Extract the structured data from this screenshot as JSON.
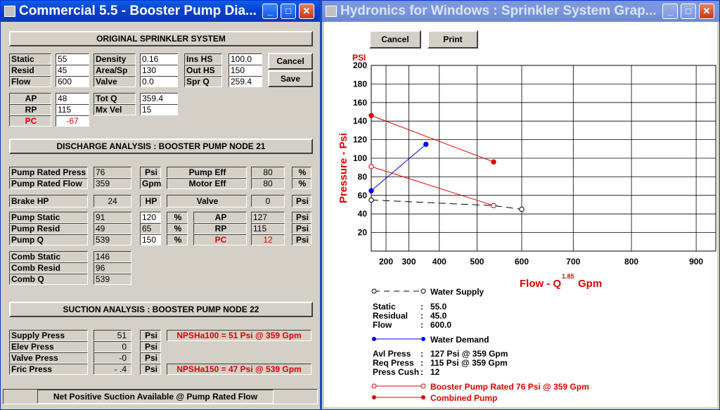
{
  "left_window": {
    "title": "Commercial 5.5 - Booster Pump Dia...",
    "original": {
      "header": "ORIGINAL SPRINKLER SYSTEM",
      "col1": [
        {
          "label": "Static",
          "value": "55"
        },
        {
          "label": "Resid",
          "value": "45"
        },
        {
          "label": "Flow",
          "value": "600"
        }
      ],
      "col2": [
        {
          "label": "Density",
          "value": "0.16"
        },
        {
          "label": "Area/Sp",
          "value": "130"
        },
        {
          "label": "Valve",
          "value": "0.0"
        }
      ],
      "col3": [
        {
          "label": "Ins HS",
          "value": "100.0"
        },
        {
          "label": "Out HS",
          "value": "150"
        },
        {
          "label": "Spr Q",
          "value": "259.4"
        }
      ],
      "ap_label": "AP",
      "ap_value": "48",
      "rp_label": "RP",
      "rp_value": "115",
      "pc_label": "PC",
      "pc_value": "-67",
      "totq_label": "Tot Q",
      "totq_value": "359.4",
      "mxvel_label": "Mx Vel",
      "mxvel_value": "15",
      "cancel_label": "Cancel",
      "save_label": "Save"
    },
    "discharge": {
      "header": "DISCHARGE ANALYSIS : BOOSTER PUMP NODE 21",
      "rated_press_label": "Pump Rated Press",
      "rated_press_value": "76",
      "rated_press_unit": "Psi",
      "rated_flow_label": "Pump Rated Flow",
      "rated_flow_value": "359",
      "rated_flow_unit": "Gpm",
      "pump_eff_label": "Pump Eff",
      "pump_eff_value": "80",
      "pump_eff_unit": "%",
      "motor_eff_label": "Motor Eff",
      "motor_eff_value": "80",
      "motor_eff_unit": "%",
      "brake_label": "Brake HP",
      "brake_value": "24",
      "brake_unit": "HP",
      "valve_label": "Valve",
      "valve_value": "0",
      "valve_unit": "Psi",
      "pump_static_label": "Pump Static",
      "pump_static_value": "91",
      "pump_static_pct": "120",
      "pump_static_pct_unit": "%",
      "pump_resid_label": "Pump Resid",
      "pump_resid_value": "49",
      "pump_resid_pct": "65",
      "pump_resid_pct_unit": "%",
      "pump_q_label": "Pump Q",
      "pump_q_value": "539",
      "pump_q_pct": "150",
      "pump_q_pct_unit": "%",
      "ap_label": "AP",
      "ap_value": "127",
      "ap_unit": "Psi",
      "rp_label": "RP",
      "rp_value": "115",
      "rp_unit": "Psi",
      "pc_label": "PC",
      "pc_value": "12",
      "pc_unit": "Psi",
      "comb_static_label": "Comb Static",
      "comb_static_value": "146",
      "comb_resid_label": "Comb Resid",
      "comb_resid_value": "96",
      "comb_q_label": "Comb Q",
      "comb_q_value": "539"
    },
    "suction": {
      "header": "SUCTION ANALYSIS : BOOSTER PUMP NODE 22",
      "supply_label": "Supply Press",
      "supply_value": "51",
      "supply_unit": "Psi",
      "elev_label": "Elev    Press",
      "elev_value": "0",
      "elev_unit": "Psi",
      "valve_label": "Valve  Press",
      "valve_value": "-0",
      "valve_unit": "Psi",
      "fric_label": "Fric     Press",
      "fric_value": "- .4",
      "fric_unit": "Psi",
      "npsh100": "NPSHa100 = 51 Psi @ 359 Gpm",
      "npsh150": "NPSHa150 = 47 Psi @ 539 Gpm",
      "status": "Net Positive Suction Available @ Pump Rated Flow"
    }
  },
  "right_window": {
    "title": "Hydronics for Windows : Sprinkler System Grap...",
    "cancel_label": "Cancel",
    "print_label": "Print",
    "legend": {
      "water_supply": "Water Supply",
      "static_label": "Static",
      "static_value": "55.0",
      "residual_label": "Residual",
      "residual_value": "45.0",
      "flow_label": "Flow",
      "flow_value": "600.0",
      "colon": ":",
      "water_demand": "Water Demand",
      "avl_label": "Avl Press",
      "avl_value": "127 Psi @ 359 Gpm",
      "req_label": "Req Press",
      "req_value": "115 Psi @ 359 Gpm",
      "cush_label": "Press Cush",
      "cush_value": "12",
      "booster": "Booster Pump Rated 76 Psi @ 359 Gpm",
      "combined": "Combined Pump"
    }
  },
  "colors": {
    "accent_red": "#e00000",
    "demand_blue": "#0000ff",
    "title_blue": "#0a3fcf"
  },
  "chart_data": {
    "type": "line",
    "unit_label": "PSI",
    "ylabel": "Pressure - Psi",
    "xlabel_main": "Flow - Q",
    "xlabel_exp": "1.85",
    "xlabel_unit": "Gpm",
    "x_ticks": [
      200,
      300,
      400,
      500,
      600,
      700,
      800,
      900
    ],
    "x_tick_labels": [
      "200",
      "300",
      "400",
      "500",
      "600",
      "700",
      "800",
      "900"
    ],
    "y_ticks": [
      20,
      40,
      60,
      80,
      100,
      120,
      140,
      160,
      180,
      200
    ],
    "ylim": [
      0,
      200
    ],
    "grid": true,
    "series": [
      {
        "name": "Water Supply",
        "color": "#000000",
        "style": "dashed",
        "marker": "open",
        "x": [
          0,
          539,
          600
        ],
        "y": [
          55,
          49,
          45
        ]
      },
      {
        "name": "Water Demand",
        "color": "#0000ff",
        "style": "solid",
        "marker": "filled",
        "x": [
          0,
          359
        ],
        "y": [
          65,
          115
        ]
      },
      {
        "name": "Booster Pump Rated 76 Psi @ 359 Gpm",
        "color": "#e00000",
        "style": "solid",
        "marker": "open",
        "x": [
          0,
          539
        ],
        "y": [
          91,
          49
        ]
      },
      {
        "name": "Combined Pump",
        "color": "#e00000",
        "style": "solid",
        "marker": "filled",
        "x": [
          0,
          539
        ],
        "y": [
          146,
          96
        ]
      }
    ]
  }
}
